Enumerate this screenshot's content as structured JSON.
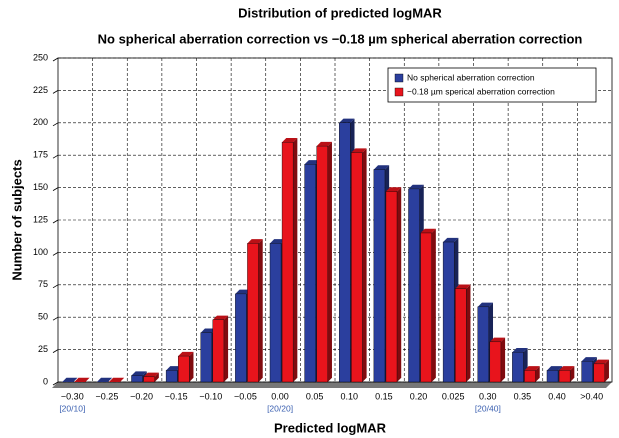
{
  "chart_data": {
    "type": "bar",
    "title": "Distribution of predicted logMAR",
    "subtitle": "No spherical aberration correction vs −0.18 µm spherical aberration correction",
    "x_label": "Predicted logMAR",
    "y_label": "Number of subjects",
    "categories": [
      "−0.30",
      "−0.25",
      "−0.20",
      "−0.15",
      "−0.10",
      "−0.05",
      "0.00",
      "0.05",
      "0.10",
      "0.15",
      "0.20",
      "0.025",
      "0.30",
      "0.35",
      "0.40",
      ">0.40"
    ],
    "category_sublabels": [
      "[20/10]",
      null,
      null,
      null,
      null,
      null,
      "[20/20]",
      null,
      null,
      null,
      null,
      null,
      "[20/40]",
      null,
      null,
      null
    ],
    "series": [
      {
        "name": "No spherical aberration correction",
        "color": "#2b3f9e",
        "values": [
          0,
          0,
          5,
          9,
          38,
          68,
          107,
          168,
          200,
          164,
          149,
          108,
          58,
          23,
          9,
          16
        ]
      },
      {
        "name": "−0.18 µm sperical aberration correction",
        "color": "#e8141c",
        "values": [
          0,
          0,
          4,
          20,
          48,
          107,
          185,
          182,
          177,
          147,
          115,
          72,
          31,
          9,
          9,
          14
        ]
      }
    ],
    "ylim": [
      0,
      250
    ],
    "yticks": [
      0,
      25,
      50,
      75,
      100,
      125,
      150,
      175,
      200,
      225,
      250
    ],
    "grid": true,
    "legend": "top-right"
  }
}
